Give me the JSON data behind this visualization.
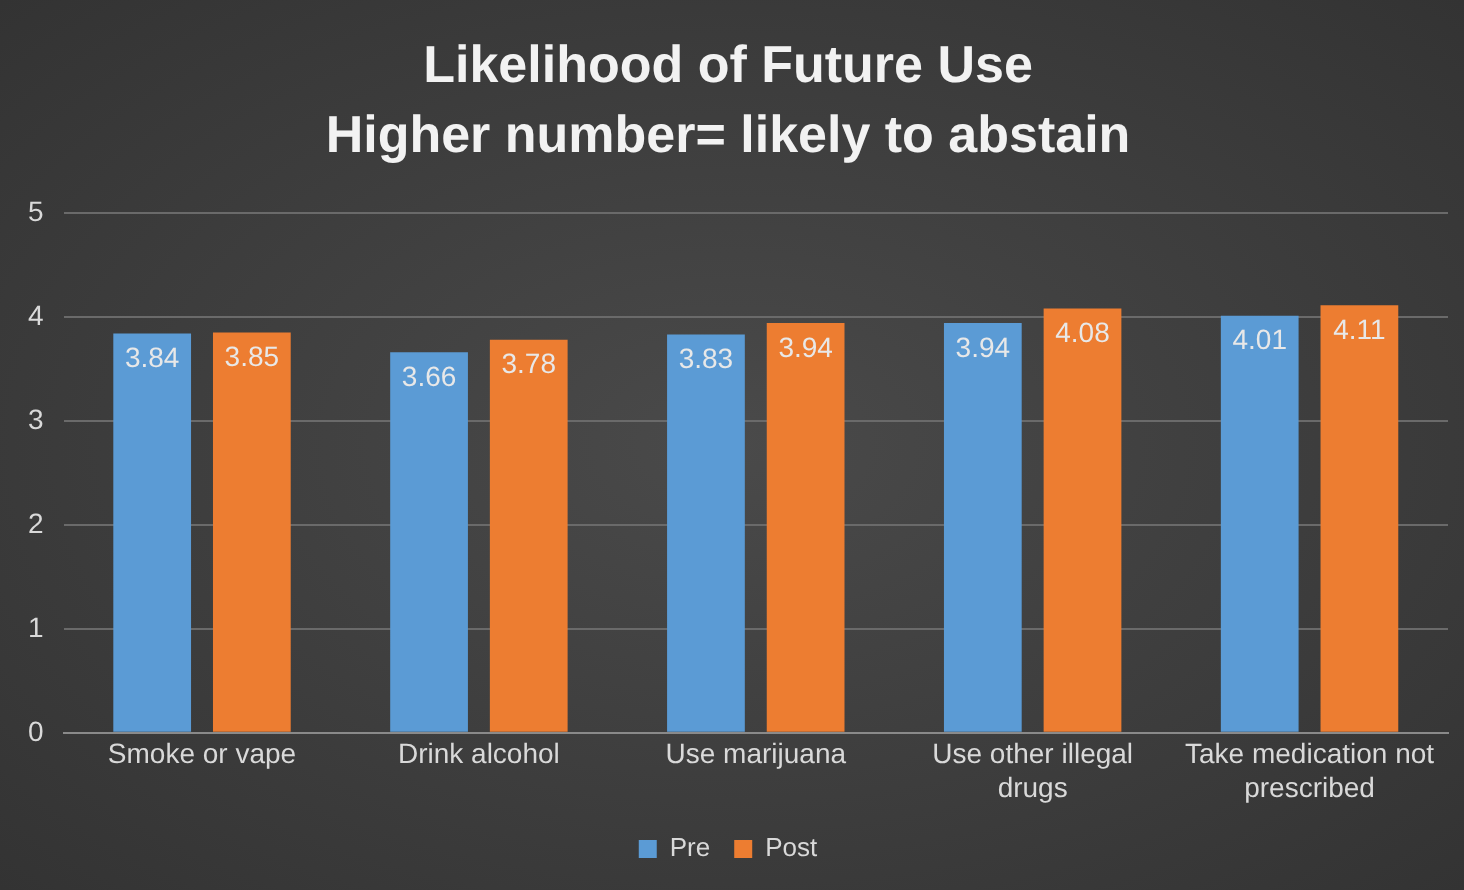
{
  "chart_data": {
    "type": "bar",
    "title": "Likelihood of Future Use",
    "subtitle": "Higher number= likely to abstain",
    "categories": [
      "Smoke or vape",
      "Drink alcohol",
      "Use marijuana",
      "Use other illegal drugs",
      "Take medication not prescribed"
    ],
    "series": [
      {
        "name": "Pre",
        "color": "#5b9bd5",
        "values": [
          3.84,
          3.66,
          3.83,
          3.94,
          4.01
        ]
      },
      {
        "name": "Post",
        "color": "#ed7d31",
        "values": [
          3.85,
          3.78,
          3.94,
          4.08,
          4.11
        ]
      }
    ],
    "ylim": [
      0,
      5
    ],
    "yticks": [
      0,
      1,
      2,
      3,
      4,
      5
    ],
    "grid": "y",
    "legend": "bottom",
    "data_labels": true
  }
}
